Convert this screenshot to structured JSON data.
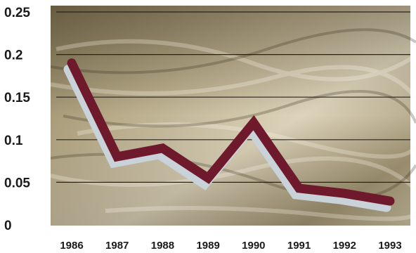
{
  "colors": {
    "line": "#6e1a2c",
    "shadow": "#c9d2d8",
    "grid": "#2a2418",
    "plot_bg_light": "#d9d1b6",
    "plot_bg_dark": "#5a4e36"
  },
  "chart_data": {
    "type": "line",
    "title": "",
    "xlabel": "",
    "ylabel": "",
    "categories": [
      "1986",
      "1987",
      "1988",
      "1989",
      "1990",
      "1991",
      "1992",
      "1993"
    ],
    "values": [
      0.19,
      0.08,
      0.09,
      0.055,
      0.12,
      0.043,
      0.037,
      0.028
    ],
    "ylim": [
      0,
      0.25
    ],
    "yticks": [
      "0",
      "0.05",
      "0.1",
      "0.15",
      "0.2",
      "0.25"
    ],
    "grid": true,
    "legend": "none"
  }
}
